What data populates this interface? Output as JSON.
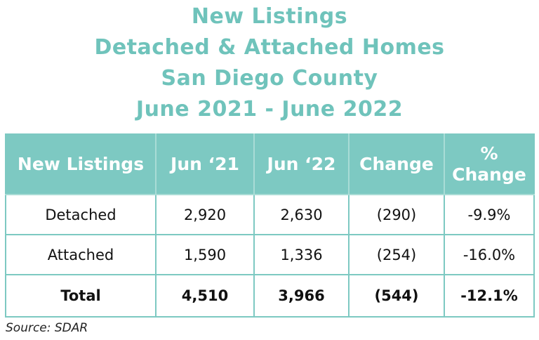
{
  "title": {
    "line1": "New Listings",
    "line2": "Detached & Attached Homes",
    "line3": "San Diego County",
    "line4": "June 2021 - June 2022"
  },
  "chart_data": {
    "type": "table",
    "columns": [
      "New Listings",
      "Jun ‘21",
      "Jun ‘22",
      "Change",
      "% Change"
    ],
    "column_header_lines": {
      "pct_change_line1": "%",
      "pct_change_line2": "Change"
    },
    "rows": [
      {
        "label": "Detached",
        "jun21": "2,920",
        "jun22": "2,630",
        "change": "(290)",
        "pct_change": "-9.9%"
      },
      {
        "label": "Attached",
        "jun21": "1,590",
        "jun22": "1,336",
        "change": "(254)",
        "pct_change": "-16.0%"
      },
      {
        "label": "Total",
        "jun21": "4,510",
        "jun22": "3,966",
        "change": "(544)",
        "pct_change": "-12.1%"
      }
    ]
  },
  "source": "Source: SDAR",
  "colors": {
    "accent": "#6fc3bb",
    "header_bg": "#7dc9c2",
    "text": "#111111"
  }
}
